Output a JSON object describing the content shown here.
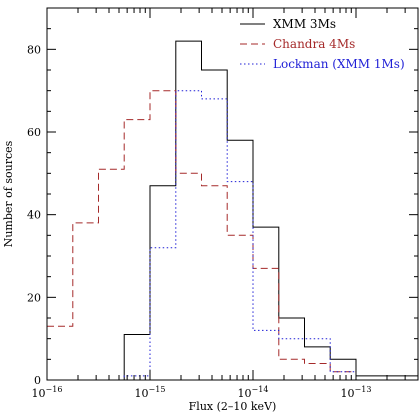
{
  "chart_data": {
    "type": "histogram",
    "title": "",
    "xlabel": "Flux (2–10 keV)",
    "ylabel": "Number of sources",
    "x_scale": "log",
    "xlim": [
      1e-16,
      4e-13
    ],
    "ylim": [
      0,
      90
    ],
    "grid": false,
    "legend_position": "top-right",
    "x_ticks": [
      {
        "value": 1e-16,
        "base": "10",
        "exp": "−16"
      },
      {
        "value": 1e-15,
        "base": "10",
        "exp": "−15"
      },
      {
        "value": 1e-14,
        "base": "10",
        "exp": "−14"
      },
      {
        "value": 1e-13,
        "base": "10",
        "exp": "−13"
      }
    ],
    "y_ticks": [
      0,
      20,
      40,
      60,
      80
    ],
    "series": [
      {
        "name": "XMM 3Ms",
        "color": "#000000",
        "dash": "solid",
        "bin_edges": [
          1e-16,
          3.16e-16,
          5.62e-16,
          1e-15,
          1.78e-15,
          3.16e-15,
          5.62e-15,
          1e-14,
          1.78e-14,
          3.16e-14,
          5.62e-14,
          1e-13,
          1.78e-13,
          4e-13
        ],
        "counts": [
          0,
          0,
          11,
          47,
          82,
          75,
          58,
          37,
          15,
          8,
          5,
          1,
          1
        ]
      },
      {
        "name": "Chandra 4Ms",
        "color": "#a52a2a",
        "dash": "dashed",
        "bin_edges": [
          1e-16,
          1.78e-16,
          3.16e-16,
          5.62e-16,
          1e-15,
          1.78e-15,
          3.16e-15,
          5.62e-15,
          1e-14,
          1.78e-14,
          3.16e-14,
          5.62e-14,
          1e-13
        ],
        "counts": [
          13,
          38,
          51,
          63,
          70,
          50,
          47,
          35,
          27,
          5,
          4,
          2
        ]
      },
      {
        "name": "Lockman (XMM 1Ms)",
        "color": "#1f1fd6",
        "dash": "dotted",
        "bin_edges": [
          1e-16,
          5.62e-16,
          1e-15,
          1.78e-15,
          3.16e-15,
          5.62e-15,
          1e-14,
          1.78e-14,
          3.16e-14,
          5.62e-14,
          1e-13,
          4e-13
        ],
        "counts": [
          0,
          1,
          32,
          70,
          68,
          48,
          12,
          10,
          10,
          2,
          0
        ]
      }
    ]
  }
}
